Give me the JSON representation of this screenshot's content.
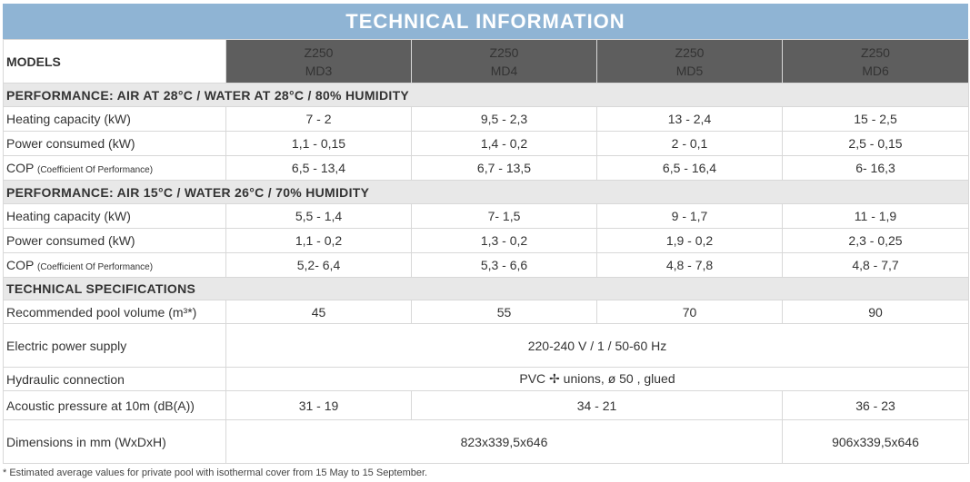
{
  "title": "TECHNICAL INFORMATION",
  "models_label": "MODELS",
  "models": [
    {
      "line1": "Z250",
      "line2": "MD3"
    },
    {
      "line1": "Z250",
      "line2": "MD4"
    },
    {
      "line1": "Z250",
      "line2": "MD5"
    },
    {
      "line1": "Z250",
      "line2": "MD6"
    }
  ],
  "section1": {
    "heading": "PERFORMANCE: AIR AT 28°C / WATER AT 28°C / 80% HUMIDITY",
    "rows": [
      {
        "label": "Heating capacity (kW)",
        "values": [
          "7 - 2",
          "9,5 - 2,3",
          "13 - 2,4",
          "15 - 2,5"
        ]
      },
      {
        "label": "Power consumed (kW)",
        "values": [
          "1,1 - 0,15",
          "1,4 - 0,2",
          "2 - 0,1",
          "2,5 - 0,15"
        ]
      },
      {
        "label": "COP",
        "sublabel": "(Coefficient Of Performance)",
        "values": [
          "6,5 - 13,4",
          "6,7 - 13,5",
          "6,5 - 16,4",
          "6- 16,3"
        ]
      }
    ]
  },
  "section2": {
    "heading": "PERFORMANCE: AIR 15°C / WATER 26°C / 70% HUMIDITY",
    "rows": [
      {
        "label": "Heating capacity (kW)",
        "values": [
          "5,5 - 1,4",
          "7- 1,5",
          "9 - 1,7",
          "11 - 1,9"
        ]
      },
      {
        "label": "Power consumed (kW)",
        "values": [
          "1,1 - 0,2",
          "1,3 - 0,2",
          "1,9 - 0,2",
          "2,3 - 0,25"
        ]
      },
      {
        "label": "COP",
        "sublabel": "(Coefficient Of Performance)",
        "values": [
          "5,2- 6,4",
          "5,3 - 6,6",
          "4,8 - 7,8",
          "4,8 - 7,7"
        ]
      }
    ]
  },
  "section3": {
    "heading": "TECHNICAL SPECIFICATIONS",
    "pool_volume": {
      "label": "Recommended pool volume (m³*)",
      "values": [
        "45",
        "55",
        "70",
        "90"
      ]
    },
    "power_supply": {
      "label": "Electric power supply",
      "value": "220-240 V / 1 / 50-60 Hz"
    },
    "hydraulic": {
      "label": "Hydraulic connection",
      "value": "PVC ✢ unions, ø 50 , glued"
    },
    "acoustic": {
      "label": "Acoustic pressure at 10m (dB(A))",
      "values": [
        "31 - 19",
        "34 - 21",
        "36 - 23"
      ]
    },
    "dimensions": {
      "label": "Dimensions in mm (WxDxH)",
      "values": [
        "823x339,5x646",
        "906x339,5x646"
      ]
    }
  },
  "footnote": "* Estimated average values for private pool with isothermal cover from 15 May to 15 September."
}
